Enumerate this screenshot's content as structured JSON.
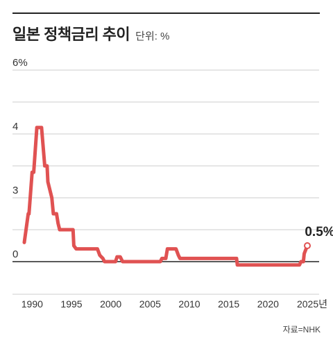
{
  "title": "일본 정책금리 추이",
  "unit_label": "단위: %",
  "source": "자료=NHK",
  "colors": {
    "line": "#e05252",
    "grid": "#cccccc",
    "zero_axis": "#222222",
    "background": "#ffffff"
  },
  "chart_data": {
    "type": "line",
    "title": "일본 정책금리 추이",
    "ylabel": "단위: %",
    "y_tick_labels": [
      "6%",
      "4",
      "3",
      "0"
    ],
    "x_ticks": [
      1990,
      1995,
      2000,
      2005,
      2010,
      2015,
      2020,
      2025
    ],
    "x_tick_labels": [
      "1990",
      "1995",
      "2000",
      "2005",
      "2010",
      "2015",
      "2020",
      "2025년"
    ],
    "xlim": [
      1987.5,
      2026.5
    ],
    "grid": "horizontal",
    "last_point_label": "0.5%",
    "series": [
      {
        "x": [
          1989.0,
          1989.5,
          1989.6,
          1990.0,
          1990.2,
          1990.6,
          1990.7,
          1991.2,
          1991.6,
          1991.9,
          1992.0,
          1992.5,
          1992.7,
          1993.1,
          1993.3,
          1993.5,
          1995.2,
          1995.3,
          1995.6,
          1998.3,
          1998.6,
          1999.0,
          1999.2,
          2000.6,
          2000.8,
          2001.2,
          2001.5,
          2001.8,
          2001.9,
          2002.0,
          2005.0,
          2006.3,
          2006.5,
          2007.0,
          2007.2,
          2008.3,
          2008.6,
          2008.8,
          2010.0,
          2013.0,
          2016.0,
          2016.1,
          2019.0,
          2024.0,
          2024.2,
          2024.5,
          2024.6,
          2025.0
        ],
        "y": [
          0.6,
          1.5,
          1.5,
          2.8,
          2.8,
          4.2,
          4.2,
          4.2,
          3.0,
          3.0,
          2.5,
          2.0,
          1.5,
          1.5,
          1.2,
          1.0,
          1.0,
          0.5,
          0.4,
          0.4,
          0.2,
          0.1,
          0.0,
          0.0,
          0.15,
          0.15,
          0.0,
          0.0,
          0.0,
          0.0,
          0.0,
          0.0,
          0.1,
          0.1,
          0.4,
          0.4,
          0.2,
          0.1,
          0.1,
          0.1,
          0.1,
          -0.1,
          -0.1,
          -0.1,
          0.0,
          0.0,
          0.25,
          0.5
        ]
      }
    ]
  }
}
